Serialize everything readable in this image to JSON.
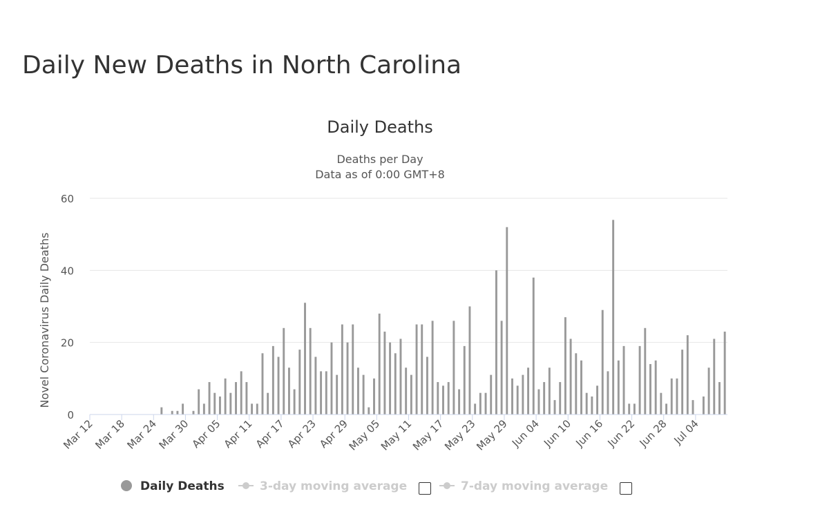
{
  "page": {
    "title": "Daily New Deaths in North Carolina"
  },
  "legend": {
    "daily_label": "Daily Deaths",
    "ma3_label": "3-day moving average",
    "ma7_label": "7-day moving average"
  },
  "colors": {
    "bar": "#999999",
    "grid": "#e6e6e6",
    "axis": "#ccd6eb",
    "legend_dim": "#cccccc"
  },
  "chart_data": {
    "type": "bar",
    "title": "Daily Deaths",
    "subtitle": [
      "Deaths per Day",
      "Data as of 0:00 GMT+8"
    ],
    "ylabel": "Novel Coronavirus Daily Deaths",
    "xlabel": "",
    "ylim": [
      0,
      60
    ],
    "yticks": [
      0,
      20,
      40,
      60
    ],
    "grid": true,
    "start_date": "Mar 12",
    "xtick_labels": [
      "Mar 12",
      "Mar 18",
      "Mar 24",
      "Mar 30",
      "Apr 05",
      "Apr 11",
      "Apr 17",
      "Apr 23",
      "Apr 29",
      "May 05",
      "May 11",
      "May 17",
      "May 23",
      "May 29",
      "Jun 04",
      "Jun 10",
      "Jun 16",
      "Jun 22",
      "Jun 28",
      "Jul 04"
    ],
    "xtick_every": 6,
    "series": [
      {
        "name": "Daily Deaths",
        "values": [
          0,
          0,
          0,
          0,
          0,
          0,
          0,
          0,
          0,
          0,
          0,
          0,
          0,
          2,
          0,
          1,
          1,
          3,
          0,
          1,
          7,
          3,
          9,
          6,
          5,
          10,
          6,
          9,
          12,
          9,
          3,
          3,
          17,
          6,
          19,
          16,
          24,
          13,
          7,
          18,
          31,
          24,
          16,
          12,
          12,
          20,
          11,
          25,
          20,
          25,
          13,
          11,
          2,
          10,
          28,
          23,
          20,
          17,
          21,
          13,
          11,
          25,
          25,
          16,
          26,
          9,
          8,
          9,
          26,
          7,
          19,
          30,
          3,
          6,
          6,
          11,
          40,
          26,
          52,
          10,
          8,
          11,
          13,
          38,
          7,
          9,
          13,
          4,
          9,
          27,
          21,
          17,
          15,
          6,
          5,
          8,
          29,
          12,
          54,
          15,
          19,
          3,
          3,
          19,
          24,
          14,
          15,
          6,
          3,
          10,
          10,
          18,
          22,
          4,
          0,
          5,
          13,
          21,
          9,
          23
        ]
      }
    ]
  }
}
